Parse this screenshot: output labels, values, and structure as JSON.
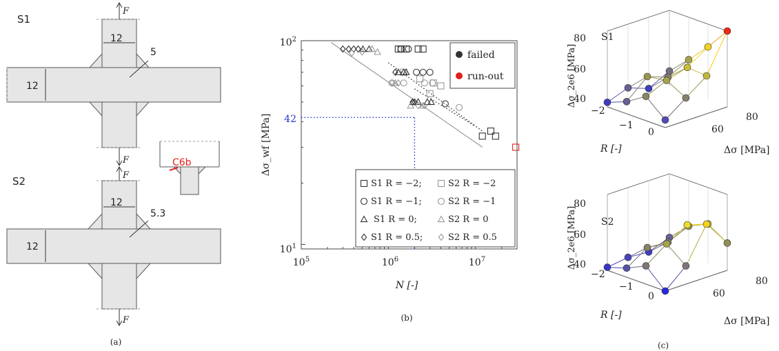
{
  "panel_a": {
    "caption": "(a)",
    "specimen_labels": [
      "S1",
      "S2"
    ],
    "force_label": "F",
    "dims_s1": {
      "attachment": "12",
      "plate": "12",
      "weld": "5"
    },
    "dims_s2": {
      "attachment": "12",
      "plate": "12",
      "weld": "5.3"
    },
    "inset_label": "C6b",
    "inset_color": "#e0201b"
  },
  "panel_b": {
    "caption": "(b)",
    "ylabel": "Δσ_wf [MPa]",
    "xlabel": "N [-]",
    "y_tick_labels": [
      "10",
      "10"
    ],
    "y_tick_exps": [
      "2",
      "1"
    ],
    "x_tick_labels": [
      "10",
      "10",
      "10"
    ],
    "x_tick_exps": [
      "5",
      "6",
      "7"
    ],
    "annotation_value": "42",
    "annotation_color": "#2233cc",
    "legend_status": [
      {
        "label": "failed",
        "color": "#333333"
      },
      {
        "label": "run-out",
        "color": "#e0201b"
      }
    ],
    "legend_series": [
      "S1 R = −2;",
      "S2 R = −2",
      "S1 R = −1;",
      "S2 R = −1",
      "S1 R = 0;",
      "S2 R = 0",
      "S1 R = 0.5;",
      "S2 R = 0.5"
    ]
  },
  "panel_c": {
    "caption": "(c)",
    "sub_labels": [
      "S1",
      "S2"
    ],
    "zlabel": "Δσ_2e6 [MPa]",
    "xlabel": "R [-]",
    "ylabel": "Δσ [MPa]",
    "z_ticks": [
      "80",
      "60",
      "40"
    ],
    "r_ticks": [
      "−2",
      "−1",
      "0"
    ],
    "ds_ticks": [
      "60",
      "80"
    ]
  },
  "chart_data": [
    {
      "type": "scatter",
      "title": "",
      "xlabel": "N [-]",
      "ylabel": "Δσ_wf [MPa]",
      "xscale": "log",
      "yscale": "log",
      "xlim": [
        100000,
        30000000
      ],
      "ylim": [
        9.5,
        100
      ],
      "legend": "bottom-right",
      "grid": false,
      "series": [
        {
          "name": "S1 R = −2",
          "marker": "square",
          "fill": "none",
          "color": "#333333",
          "points": [
            [
              1300000,
              91
            ],
            [
              1400000,
              91
            ],
            [
              1600000,
              91
            ],
            [
              2200000,
              91
            ],
            [
              2500000,
              91
            ],
            [
              12000000,
              34
            ],
            [
              15000000,
              36
            ],
            [
              17000000,
              34
            ]
          ]
        },
        {
          "name": "S2 R = −2",
          "marker": "square",
          "fill": "none",
          "color": "#999999",
          "points": [
            [
              1500000,
              70
            ],
            [
              2300000,
              65
            ],
            [
              3300000,
              62
            ],
            [
              4000000,
              60
            ],
            [
              3000000,
              55
            ]
          ]
        },
        {
          "name": "S1 R = −1",
          "marker": "circle",
          "fill": "none",
          "color": "#333333",
          "points": [
            [
              1400000,
              91
            ],
            [
              1700000,
              91
            ],
            [
              2100000,
              70
            ],
            [
              2500000,
              70
            ],
            [
              3000000,
              70
            ],
            [
              4500000,
              49
            ]
          ]
        },
        {
          "name": "S2 R = −1",
          "marker": "circle",
          "fill": "none",
          "color": "#999999",
          "points": [
            [
              1100000,
              62
            ],
            [
              1500000,
              62
            ],
            [
              2600000,
              62
            ],
            [
              3200000,
              62
            ],
            [
              6500000,
              47
            ]
          ]
        },
        {
          "name": "S1 R = 0",
          "marker": "triangle",
          "fill": "none",
          "color": "#333333",
          "points": [
            [
              510000,
              91
            ],
            [
              600000,
              91
            ],
            [
              1300000,
              70
            ],
            [
              1500000,
              70
            ],
            [
              1600000,
              70
            ],
            [
              1900000,
              50
            ],
            [
              2200000,
              50
            ],
            [
              2800000,
              50
            ],
            [
              3100000,
              50
            ]
          ]
        },
        {
          "name": "S2 R = 0",
          "marker": "triangle",
          "fill": "none",
          "color": "#999999",
          "points": [
            [
              650000,
              91
            ],
            [
              750000,
              88
            ],
            [
              1200000,
              62
            ],
            [
              1800000,
              48
            ],
            [
              2500000,
              48
            ]
          ]
        },
        {
          "name": "S1 R = 0.5",
          "marker": "diamond",
          "fill": "none",
          "color": "#333333",
          "points": [
            [
              300000,
              91
            ],
            [
              350000,
              91
            ],
            [
              400000,
              91
            ],
            [
              450000,
              91
            ],
            [
              1200000,
              70
            ],
            [
              1900000,
              50
            ],
            [
              2000000,
              50
            ]
          ]
        },
        {
          "name": "S2 R = 0.5",
          "marker": "diamond",
          "fill": "none",
          "color": "#999999",
          "points": [
            [
              380000,
              87
            ],
            [
              500000,
              88
            ],
            [
              1100000,
              62
            ],
            [
              1300000,
              62
            ],
            [
              2200000,
              48
            ],
            [
              2600000,
              48
            ]
          ]
        },
        {
          "name": "run-out",
          "marker": "square",
          "fill": "none",
          "color": "#e0201b",
          "points": [
            [
              29000000,
              30
            ]
          ]
        }
      ],
      "lines": [
        {
          "style": "solid",
          "color": "#888888",
          "points": [
            [
              220000,
              98
            ],
            [
              12000000,
              30
            ]
          ]
        },
        {
          "style": "dotted",
          "color": "#333333",
          "points": [
            [
              1000000,
              78
            ],
            [
              12000000,
              36
            ]
          ]
        },
        {
          "style": "dotted",
          "color": "#333333",
          "points": [
            [
              2000000,
              58
            ],
            [
              10000000,
              38
            ]
          ]
        },
        {
          "style": "dotted",
          "color": "#2233cc",
          "points": [
            [
              100000,
              42
            ],
            [
              2000000,
              42
            ]
          ]
        },
        {
          "style": "dotted",
          "color": "#2233cc",
          "points": [
            [
              2000000,
              9.5
            ],
            [
              2000000,
              42
            ]
          ]
        }
      ]
    },
    {
      "type": "scatter",
      "title": "S1",
      "xlabel": "R [-]",
      "ylabel": "Δσ [MPa]",
      "zlabel": "Δσ_2e6 [MPa]",
      "R": [
        -2,
        -1,
        0,
        0.5
      ],
      "dsigma": [
        40,
        60,
        80,
        100
      ],
      "z_values": [
        [
          43,
          48,
          43,
          50
        ],
        [
          48,
          60,
          55,
          62
        ],
        [
          56,
          62,
          66,
          75
        ],
        [
          45,
          55,
          65,
          90
        ]
      ],
      "zlim": [
        40,
        90
      ]
    },
    {
      "type": "scatter",
      "title": "S2",
      "xlabel": "R [-]",
      "ylabel": "Δσ [MPa]",
      "zlabel": "Δσ_2e6 [MPa]",
      "R": [
        -2,
        -1,
        0,
        0.5
      ],
      "dsigma": [
        40,
        60,
        80,
        100
      ],
      "z_values": [
        [
          42,
          44,
          43,
          48
        ],
        [
          46,
          55,
          54,
          60
        ],
        [
          52,
          62,
          70,
          66
        ],
        [
          40,
          52,
          75,
          58
        ]
      ],
      "zlim": [
        40,
        90
      ]
    }
  ]
}
